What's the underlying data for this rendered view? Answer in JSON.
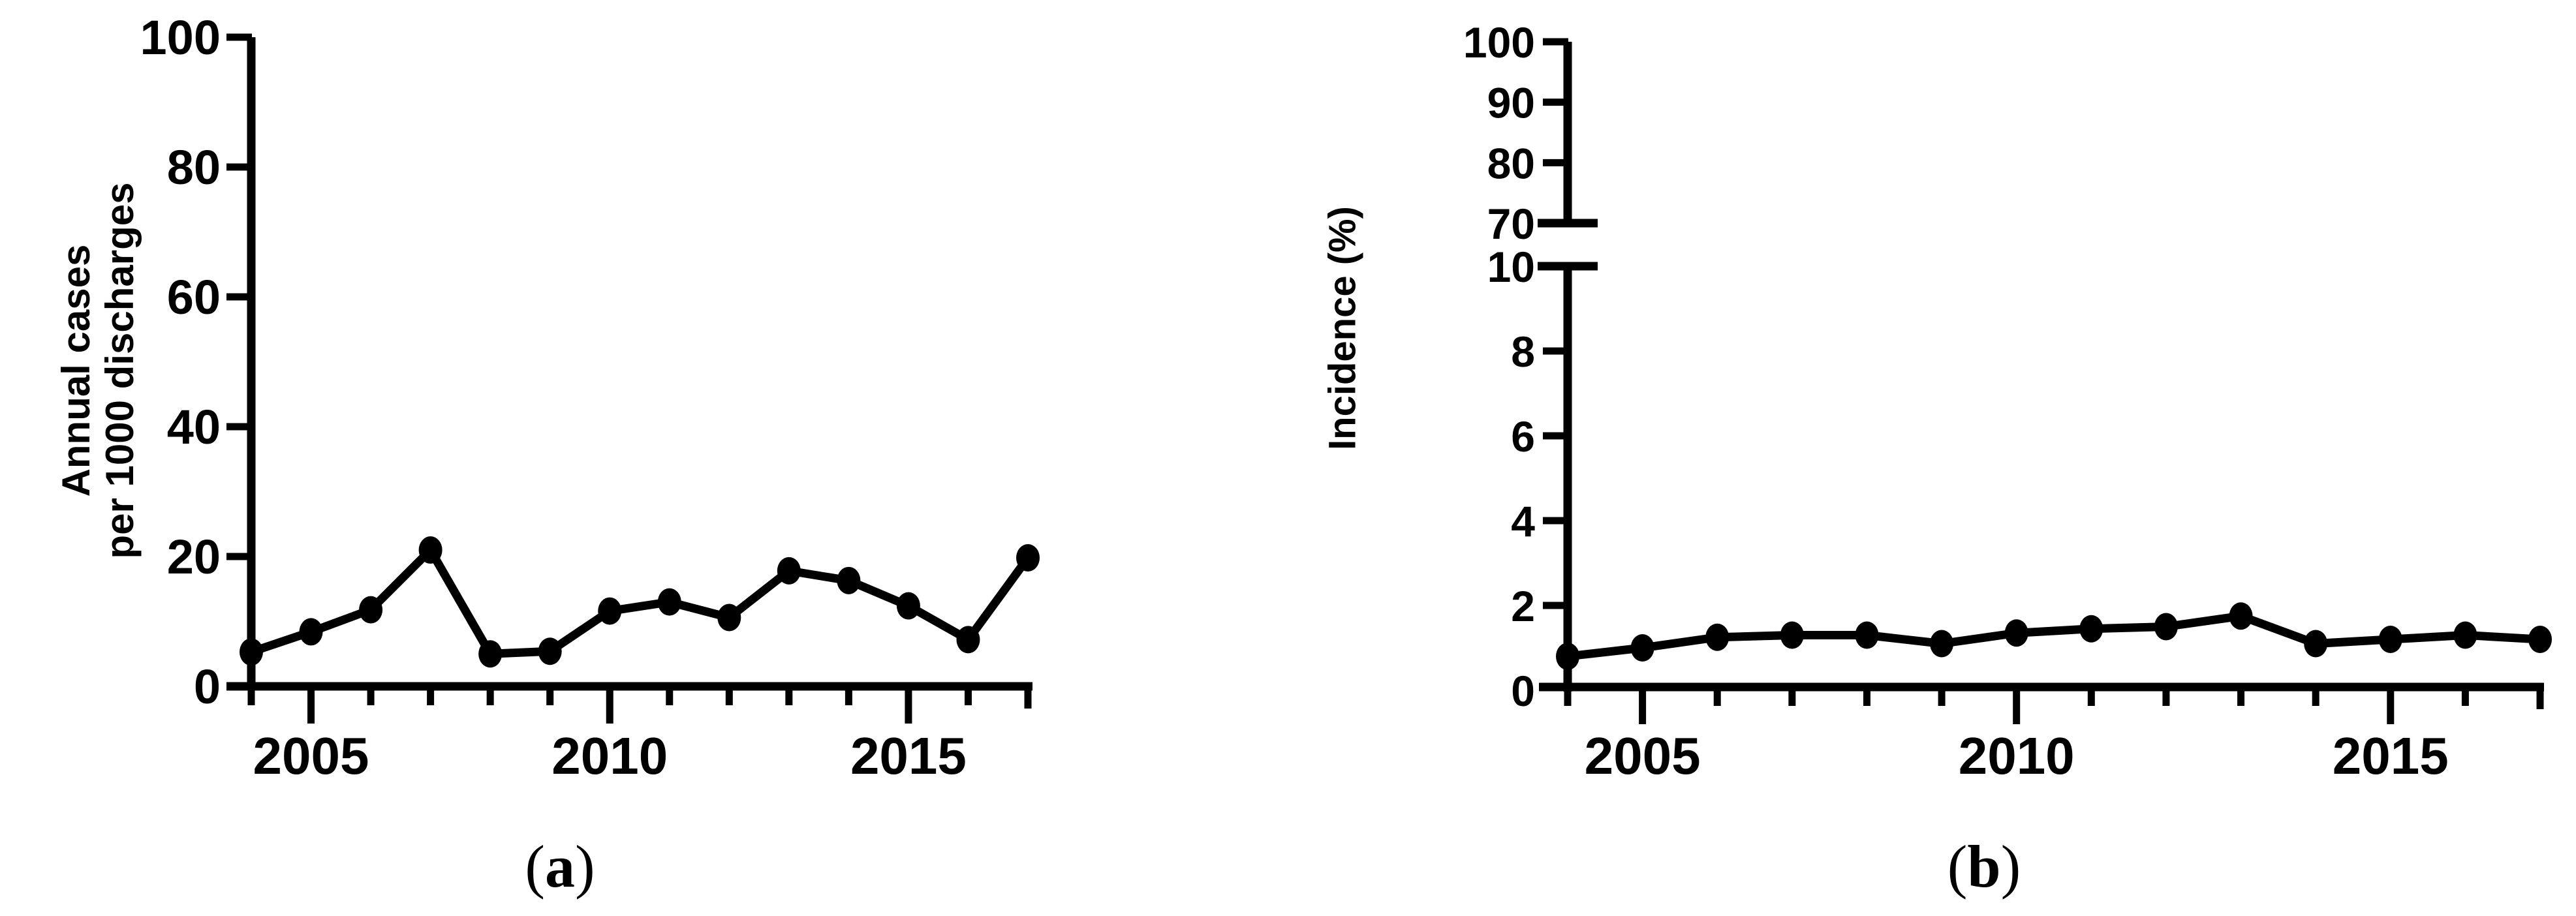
{
  "figure": {
    "background": "#ffffff",
    "ink_color": "#000000",
    "panels": [
      {
        "id": "a",
        "caption": {
          "open": "(",
          "letter": "a",
          "close": ")"
        },
        "y_axis": {
          "label_line1": "Annual cases",
          "label_line2": "per 1000 discharges"
        },
        "x_axis": {
          "labeled_years": [
            "2005",
            "2010",
            "2015"
          ]
        }
      },
      {
        "id": "b",
        "caption": {
          "open": "(",
          "letter": "b",
          "close": ")"
        },
        "y_axis": {
          "label_line1": "Incidence (%)",
          "label_line2": ""
        },
        "x_axis": {
          "labeled_years": [
            "2005",
            "2010",
            "2015"
          ]
        }
      }
    ]
  },
  "chart_data": [
    {
      "type": "line",
      "panel": "a",
      "title": "",
      "xlabel": "",
      "ylabel": "Annual cases per 1000 discharges",
      "x": [
        2004,
        2005,
        2006,
        2007,
        2008,
        2009,
        2010,
        2011,
        2012,
        2013,
        2014,
        2015,
        2016,
        2017
      ],
      "series": [
        {
          "name": "Annual cases per 1000 discharges",
          "values": [
            5.3,
            8.4,
            11.8,
            21.0,
            5.0,
            5.4,
            11.6,
            13.0,
            10.6,
            17.8,
            16.3,
            12.4,
            7.2,
            19.8
          ]
        }
      ],
      "xlim": [
        2004,
        2017
      ],
      "ylim": [
        0,
        100
      ],
      "yticks": [
        0,
        20,
        40,
        60,
        80,
        100
      ],
      "xticks_all": [
        2004,
        2005,
        2006,
        2007,
        2008,
        2009,
        2010,
        2011,
        2012,
        2013,
        2014,
        2015,
        2016,
        2017
      ],
      "xticks_labeled": [
        2005,
        2010,
        2015
      ],
      "grid": false,
      "legend": "none",
      "line_color": "#000000",
      "marker": "filled-circle"
    },
    {
      "type": "line",
      "panel": "b",
      "title": "",
      "xlabel": "",
      "ylabel": "Incidence (%)",
      "x": [
        2004,
        2005,
        2006,
        2007,
        2008,
        2009,
        2010,
        2011,
        2012,
        2013,
        2014,
        2015,
        2016,
        2017
      ],
      "series": [
        {
          "name": "Incidence (%)",
          "values": [
            0.8,
            1.0,
            1.25,
            1.3,
            1.3,
            1.1,
            1.35,
            1.45,
            1.5,
            1.75,
            1.1,
            1.2,
            1.3,
            1.2
          ]
        }
      ],
      "xlim": [
        2004,
        2017
      ],
      "ylim_broken": {
        "lower": [
          0,
          10
        ],
        "upper": [
          70,
          100
        ]
      },
      "yticks_lower": [
        0,
        2,
        4,
        6,
        8,
        10
      ],
      "yticks_upper": [
        70,
        80,
        90,
        100
      ],
      "xticks_all": [
        2004,
        2005,
        2006,
        2007,
        2008,
        2009,
        2010,
        2011,
        2012,
        2013,
        2014,
        2015,
        2016,
        2017
      ],
      "xticks_labeled": [
        2005,
        2010,
        2015
      ],
      "grid": false,
      "legend": "none",
      "line_color": "#000000",
      "marker": "filled-circle"
    }
  ]
}
